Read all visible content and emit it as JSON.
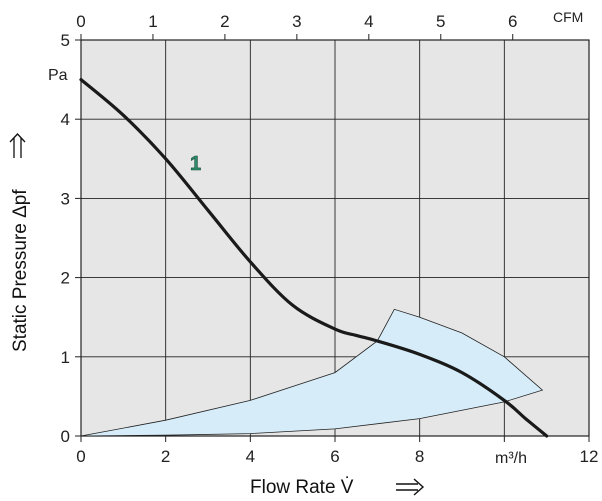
{
  "chart_data": {
    "type": "line",
    "xlabel": "Flow Rate  V̇",
    "ylabel": "Static Pressure  Δpf",
    "x_unit": "m³/h",
    "y_unit": "Pa",
    "top_axis_unit": "CFM",
    "xlim": [
      0,
      12
    ],
    "ylim": [
      0,
      5
    ],
    "top_xlim": [
      0,
      7.06
    ],
    "x_ticks": [
      "0",
      "2",
      "4",
      "6",
      "8",
      "12"
    ],
    "y_ticks": [
      "0",
      "1",
      "2",
      "3",
      "4",
      "5"
    ],
    "top_ticks": [
      "0",
      "1",
      "2",
      "3",
      "4",
      "5",
      "6"
    ],
    "top_tick_values": [
      0,
      1,
      2,
      3,
      4,
      5,
      6
    ],
    "grid": true,
    "series": [
      {
        "name": "1",
        "x": [
          0,
          1,
          2,
          3,
          4,
          5,
          6,
          6.5,
          7,
          8,
          9,
          10,
          10.5,
          11
        ],
        "y": [
          4.5,
          4.05,
          3.5,
          2.85,
          2.2,
          1.65,
          1.35,
          1.27,
          1.2,
          1.03,
          0.8,
          0.45,
          0.22,
          0
        ]
      }
    ],
    "operating_area": {
      "x": [
        0,
        2,
        4,
        6,
        7,
        7.4,
        8,
        9,
        10,
        10.9,
        10,
        8,
        6,
        4,
        2,
        0
      ],
      "y": [
        0,
        0.2,
        0.45,
        0.8,
        1.2,
        1.6,
        1.5,
        1.3,
        1.0,
        0.58,
        0.43,
        0.22,
        0.09,
        0.03,
        0.01,
        0
      ]
    }
  },
  "labels": {
    "curve_number": "1",
    "x_unit_label": "m³/h",
    "y_unit_label": "Pa",
    "cfm_label": "CFM"
  },
  "colors": {
    "plot_bg": "#e6e6e6",
    "area_fill": "#d6ecf9",
    "curve": "#1a1a1a",
    "curve_label": "#2e8b6a"
  }
}
